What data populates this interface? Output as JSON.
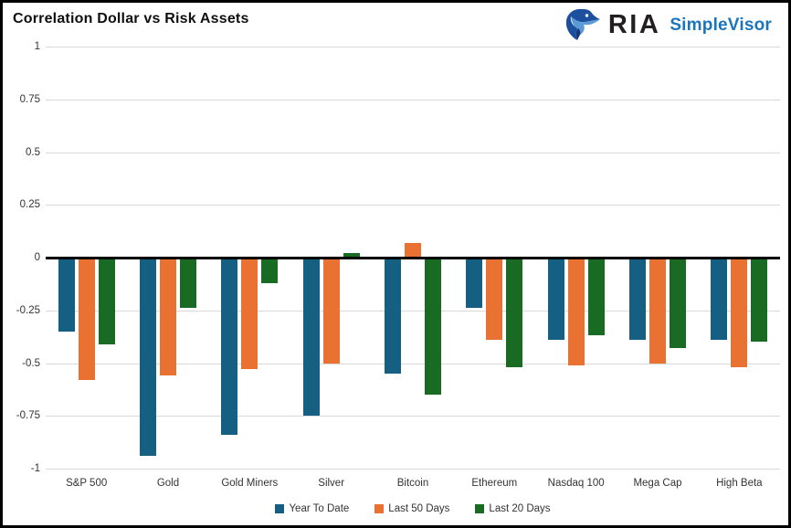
{
  "header": {
    "title": "Correlation Dollar vs Risk Assets",
    "brand": "RIA",
    "product": "SimpleVisor"
  },
  "colors": {
    "brand_text": "#231f20",
    "brand_blue": "#1b75bc",
    "grid": "#d9d9d9",
    "zero_line": "#000000",
    "axis_text": "#333333"
  },
  "chart_data": {
    "type": "bar",
    "title": "Correlation Dollar vs Risk Assets",
    "categories": [
      "S&P 500",
      "Gold",
      "Gold Miners",
      "Silver",
      "Bitcoin",
      "Ethereum",
      "Nasdaq 100",
      "Mega Cap",
      "High Beta"
    ],
    "series": [
      {
        "name": "Year To Date",
        "color": "#156082",
        "values": [
          -0.35,
          -0.94,
          -0.84,
          -0.75,
          -0.55,
          -0.24,
          -0.39,
          -0.39,
          -0.39
        ]
      },
      {
        "name": "Last 50 Days",
        "color": "#E97132",
        "values": [
          -0.58,
          -0.56,
          -0.53,
          -0.5,
          0.07,
          -0.39,
          -0.51,
          -0.5,
          -0.52
        ]
      },
      {
        "name": "Last 20 Days",
        "color": "#196B24",
        "values": [
          -0.41,
          -0.24,
          -0.12,
          0.02,
          -0.65,
          -0.52,
          -0.37,
          -0.43,
          -0.4
        ]
      }
    ],
    "ylim": [
      -1,
      1
    ],
    "yticks": [
      1,
      0.75,
      0.5,
      0.25,
      0,
      -0.25,
      -0.5,
      -0.75,
      -1
    ],
    "grid": true,
    "legend_position": "bottom"
  }
}
